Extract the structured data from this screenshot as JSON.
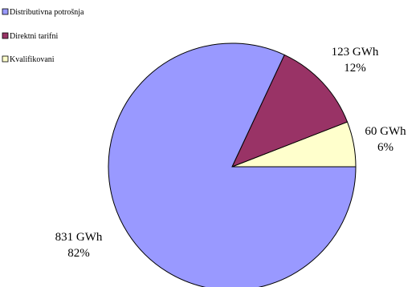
{
  "chart_data": {
    "type": "pie",
    "title": "",
    "legend_position": "top-left",
    "series": [
      {
        "name": "Distributivna potrošnja",
        "value": 831,
        "label": "831 GWh",
        "percent_label": "82%",
        "color": "#9999ff"
      },
      {
        "name": "Direktni tarifni",
        "value": 123,
        "label": "123 GWh",
        "percent_label": "12%",
        "color": "#993366"
      },
      {
        "name": "Kvalifikovani",
        "value": 60,
        "label": "60 GWh",
        "percent_label": "6%",
        "color": "#ffffcc"
      }
    ]
  }
}
